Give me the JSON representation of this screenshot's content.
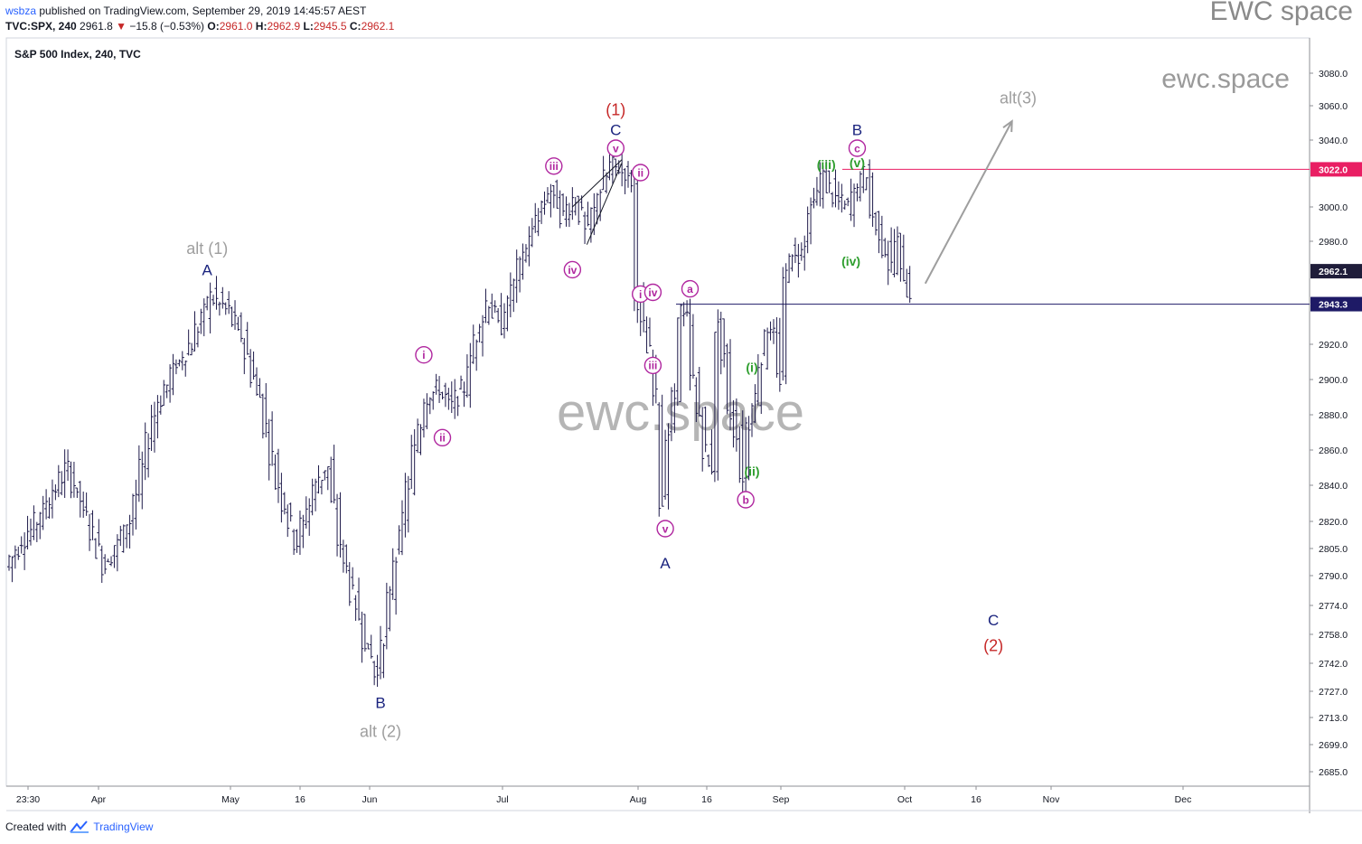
{
  "header": {
    "user": "wsbza",
    "published_text": "published on TradingView.com, September 29, 2019 14:45:57 AEST",
    "symbol_line": "TVC:SPX, 240",
    "last": "2961.8",
    "change": "−15.8 (−0.53%)",
    "o_label": "O:",
    "o_value": "2961.0",
    "h_label": "H:",
    "h_value": "2962.9",
    "l_label": "L:",
    "l_value": "2945.5",
    "c_label": "C:",
    "c_value": "2962.1"
  },
  "brand_top": "EWC space",
  "footer": {
    "created_with": "Created with",
    "tradingview": "TradingView"
  },
  "chart_data": {
    "type": "ohlc",
    "title": "S&P 500 Index, 240, TVC",
    "watermark_center": "ewc.space",
    "watermark_top": "ewc.space",
    "y_ticks": [
      3080.0,
      3060.0,
      3040.0,
      3020.0,
      3000.0,
      2980.0,
      2960.0,
      2940.0,
      2920.0,
      2900.0,
      2880.0,
      2860.0,
      2840.0,
      2820.0,
      2805.0,
      2790.0,
      2774.0,
      2758.0,
      2742.0,
      2727.0,
      2713.0,
      2699.0,
      2685.0
    ],
    "y_tick_labels": [
      "3080.0",
      "3060.0",
      "3040.0",
      "",
      "3000.0",
      "2980.0",
      "",
      "",
      "2920.0",
      "2900.0",
      "2880.0",
      "2860.0",
      "2840.0",
      "2820.0",
      "2805.0",
      "2790.0",
      "2774.0",
      "2758.0",
      "2742.0",
      "2727.0",
      "2713.0",
      "2699.0",
      "2685.0"
    ],
    "x_ticks": [
      "23:30",
      "Apr",
      "May",
      "16",
      "Jun",
      "Jul",
      "Aug",
      "16",
      "Sep",
      "Oct",
      "16",
      "Nov",
      "Dec"
    ],
    "price_tags": [
      {
        "value": 3022.0,
        "label": "3022.0",
        "color": "#e91e63"
      },
      {
        "value": 2962.1,
        "label": "2962.1",
        "color": "#1f1d3a"
      },
      {
        "value": 2943.3,
        "label": "2943.3",
        "color": "#1e1a66"
      }
    ],
    "horizontal_lines": [
      {
        "value": 3022.0,
        "color": "#e91e63"
      },
      {
        "value": 2943.3,
        "color": "#1e1a66"
      }
    ],
    "price_path": [
      [
        0,
        2795
      ],
      [
        5,
        2820
      ],
      [
        10,
        2850
      ],
      [
        16,
        2795
      ],
      [
        20,
        2820
      ],
      [
        24,
        2880
      ],
      [
        27,
        2905
      ],
      [
        30,
        2920
      ],
      [
        33,
        2948
      ],
      [
        36,
        2940
      ],
      [
        38,
        2925
      ],
      [
        41,
        2890
      ],
      [
        44,
        2840
      ],
      [
        47,
        2808
      ],
      [
        50,
        2840
      ],
      [
        52,
        2850
      ],
      [
        54,
        2808
      ],
      [
        56,
        2780
      ],
      [
        58,
        2755
      ],
      [
        60,
        2735
      ],
      [
        63,
        2800
      ],
      [
        66,
        2860
      ],
      [
        68,
        2890
      ],
      [
        70,
        2895
      ],
      [
        72,
        2885
      ],
      [
        74,
        2895
      ],
      [
        76,
        2925
      ],
      [
        78,
        2945
      ],
      [
        80,
        2930
      ],
      [
        82,
        2955
      ],
      [
        84,
        2975
      ],
      [
        86,
        2995
      ],
      [
        88,
        3010
      ],
      [
        90,
        2995
      ],
      [
        92,
        3005
      ],
      [
        94,
        2985
      ],
      [
        96,
        3010
      ],
      [
        98,
        3025
      ],
      [
        100,
        3020
      ],
      [
        101,
        3015
      ],
      [
        102,
        2945
      ],
      [
        103,
        2930
      ],
      [
        104,
        2915
      ],
      [
        105,
        2890
      ],
      [
        106,
        2830
      ],
      [
        107,
        2870
      ],
      [
        108,
        2890
      ],
      [
        109,
        2940
      ],
      [
        110,
        2935
      ],
      [
        111,
        2900
      ],
      [
        112,
        2880
      ],
      [
        113,
        2860
      ],
      [
        114,
        2850
      ],
      [
        115,
        2930
      ],
      [
        116,
        2915
      ],
      [
        117,
        2880
      ],
      [
        118,
        2870
      ],
      [
        119,
        2845
      ],
      [
        120,
        2875
      ],
      [
        121,
        2890
      ],
      [
        122,
        2910
      ],
      [
        123,
        2930
      ],
      [
        124,
        2925
      ],
      [
        125,
        2900
      ],
      [
        126,
        2960
      ],
      [
        127,
        2975
      ],
      [
        128,
        2970
      ],
      [
        129,
        2980
      ],
      [
        130,
        3000
      ],
      [
        132,
        3018
      ],
      [
        134,
        3005
      ],
      [
        136,
        3000
      ],
      [
        138,
        3015
      ],
      [
        139,
        3020
      ],
      [
        140,
        2995
      ],
      [
        141,
        2985
      ],
      [
        142,
        2975
      ],
      [
        143,
        2965
      ],
      [
        144,
        2980
      ],
      [
        145,
        2960
      ],
      [
        146,
        2950
      ]
    ],
    "wave_labels": [
      {
        "text": "alt (1)",
        "style": "gray",
        "x": 32,
        "y": 2976
      },
      {
        "text": "A",
        "style": "blue",
        "x": 32,
        "y": 2963
      },
      {
        "text": "B",
        "style": "blue",
        "x": 60,
        "y": 2721
      },
      {
        "text": "alt (2)",
        "style": "gray",
        "x": 60,
        "y": 2706
      },
      {
        "text": "i",
        "style": "circle",
        "x": 67,
        "y": 2914
      },
      {
        "text": "ii",
        "style": "circle",
        "x": 70,
        "y": 2867
      },
      {
        "text": "iii",
        "style": "circle",
        "x": 88,
        "y": 3024
      },
      {
        "text": "iv",
        "style": "circle",
        "x": 91,
        "y": 2963
      },
      {
        "text": "(1)",
        "style": "red",
        "x": 98,
        "y": 3058
      },
      {
        "text": "C",
        "style": "blue",
        "x": 98,
        "y": 3046
      },
      {
        "text": "v",
        "style": "circle",
        "x": 98,
        "y": 3035
      },
      {
        "text": "ii",
        "style": "circle",
        "x": 102,
        "y": 3020
      },
      {
        "text": "i",
        "style": "circle",
        "x": 102,
        "y": 2949
      },
      {
        "text": "iv",
        "style": "circle",
        "x": 104,
        "y": 2950
      },
      {
        "text": "iii",
        "style": "circle",
        "x": 104,
        "y": 2908
      },
      {
        "text": "v",
        "style": "circle",
        "x": 106,
        "y": 2816
      },
      {
        "text": "A",
        "style": "blue",
        "x": 106,
        "y": 2797
      },
      {
        "text": "a",
        "style": "circle",
        "x": 110,
        "y": 2952
      },
      {
        "text": "(i)",
        "style": "green",
        "x": 120,
        "y": 2907
      },
      {
        "text": "(ii)",
        "style": "green",
        "x": 120,
        "y": 2848
      },
      {
        "text": "b",
        "style": "circle",
        "x": 119,
        "y": 2832
      },
      {
        "text": "(iii)",
        "style": "green",
        "x": 132,
        "y": 3025
      },
      {
        "text": "(iv)",
        "style": "green",
        "x": 136,
        "y": 2968
      },
      {
        "text": "(v)",
        "style": "green",
        "x": 137,
        "y": 3026
      },
      {
        "text": "c",
        "style": "circle",
        "x": 137,
        "y": 3035
      },
      {
        "text": "B",
        "style": "blue",
        "x": 137,
        "y": 3046
      },
      {
        "text": "C",
        "style": "blue",
        "x": 159,
        "y": 2766
      },
      {
        "text": "(2)",
        "style": "red",
        "x": 159,
        "y": 2752
      },
      {
        "text": "alt(3)",
        "style": "gray",
        "x": 163,
        "y": 3065
      }
    ],
    "arrow": {
      "from": [
        148,
        2955
      ],
      "to": [
        162,
        3051
      ],
      "color": "#9e9e9e"
    },
    "trendline": {
      "from": [
        91,
        3000
      ],
      "to": [
        99,
        3028
      ],
      "color": "#131722"
    }
  }
}
